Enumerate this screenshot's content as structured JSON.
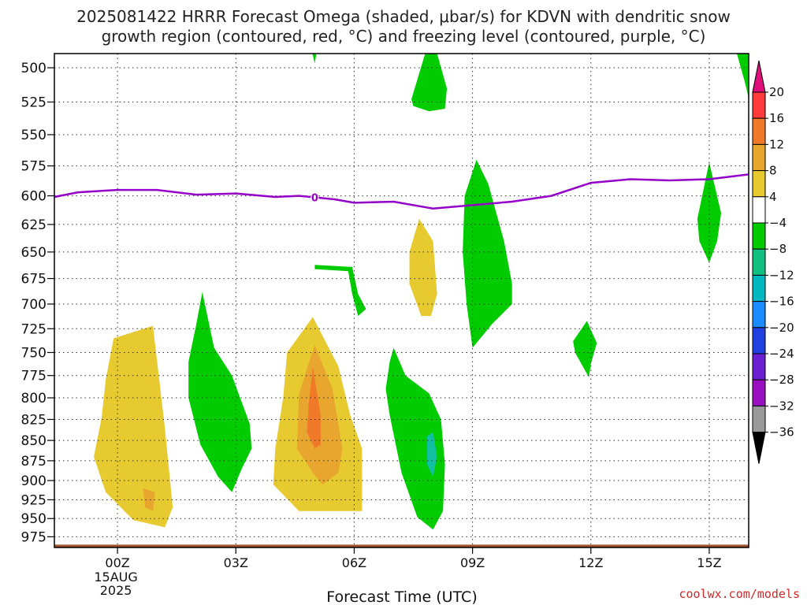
{
  "chart_data": {
    "type": "heatmap",
    "title_lines": [
      "2025081422 HRRR Forecast Omega (shaded, μbar/s) for KDVN with dendritic snow",
      "growth region (contoured, red, °C) and freezing level (contoured, purple, °C)"
    ],
    "xlabel": "Forecast Time (UTC)",
    "credit": "coolwx.com/models",
    "x_range_hours": [
      -1.6,
      16.0
    ],
    "y_range_mb": [
      490,
      990
    ],
    "y_scale": "log-pressure",
    "grid": true,
    "y_ticks": [
      500,
      525,
      550,
      575,
      600,
      625,
      650,
      675,
      700,
      725,
      750,
      775,
      800,
      825,
      850,
      875,
      900,
      925,
      950,
      975
    ],
    "x_ticks": [
      {
        "hour": 0,
        "label": "00Z",
        "sub": [
          "15AUG",
          "2025"
        ]
      },
      {
        "hour": 3,
        "label": "03Z",
        "sub": []
      },
      {
        "hour": 6,
        "label": "06Z",
        "sub": []
      },
      {
        "hour": 9,
        "label": "09Z",
        "sub": []
      },
      {
        "hour": 12,
        "label": "12Z",
        "sub": []
      },
      {
        "hour": 15,
        "label": "15Z",
        "sub": []
      }
    ],
    "colorbar": {
      "labels": [
        "20",
        "16",
        "12",
        "8",
        "4",
        "−4",
        "−8",
        "−12",
        "−16",
        "−20",
        "−24",
        "−28",
        "−32",
        "−36"
      ],
      "colors": [
        "#ff3b3b",
        "#f07a2a",
        "#e8a62e",
        "#e6ca30",
        "#ffffff",
        "#00cc00",
        "#10c080",
        "#00b8c0",
        "#1a8cff",
        "#2040e0",
        "#6a20d0",
        "#9a10c0",
        "#9a9a9a"
      ],
      "top_color": "#e0107a",
      "bottom_color": "#000000"
    },
    "freezing_level": {
      "value_label": "0",
      "label_hour": 5.0,
      "color": "#9400c8",
      "points": [
        [
          -1.6,
          601
        ],
        [
          -1,
          597
        ],
        [
          0,
          595
        ],
        [
          1,
          595
        ],
        [
          2,
          599
        ],
        [
          3,
          598
        ],
        [
          4,
          601
        ],
        [
          4.6,
          600
        ],
        [
          5.5,
          603
        ],
        [
          6,
          606
        ],
        [
          7,
          605
        ],
        [
          8,
          611
        ],
        [
          9,
          608
        ],
        [
          10,
          605
        ],
        [
          11,
          600
        ],
        [
          12,
          589
        ],
        [
          13,
          586
        ],
        [
          14,
          587
        ],
        [
          15,
          586
        ],
        [
          16,
          582
        ]
      ]
    },
    "terrain": {
      "color": "#a0522d",
      "top_mb": 986
    },
    "features": [
      {
        "name": "shade-4-8-a",
        "color": "#e6ca30",
        "points": [
          [
            -0.1,
            735
          ],
          [
            0.9,
            722
          ],
          [
            1.2,
            835
          ],
          [
            1.4,
            935
          ],
          [
            1.2,
            962
          ],
          [
            0.4,
            952
          ],
          [
            -0.3,
            915
          ],
          [
            -0.6,
            870
          ],
          [
            -0.4,
            822
          ],
          [
            -0.3,
            780
          ]
        ]
      },
      {
        "name": "shade-8-12-a",
        "color": "#e8a62e",
        "points": [
          [
            0.65,
            910
          ],
          [
            0.95,
            915
          ],
          [
            0.9,
            940
          ],
          [
            0.7,
            935
          ]
        ]
      },
      {
        "name": "shade-4-8-b",
        "color": "#e6ca30",
        "points": [
          [
            4.3,
            750
          ],
          [
            4.95,
            713
          ],
          [
            5.6,
            765
          ],
          [
            5.9,
            820
          ],
          [
            6.2,
            860
          ],
          [
            6.2,
            940
          ],
          [
            4.6,
            940
          ],
          [
            3.95,
            905
          ],
          [
            4.0,
            860
          ],
          [
            4.2,
            800
          ]
        ]
      },
      {
        "name": "shade-8-12-b",
        "color": "#e8a62e",
        "points": [
          [
            4.6,
            795
          ],
          [
            5.0,
            742
          ],
          [
            5.45,
            790
          ],
          [
            5.7,
            860
          ],
          [
            5.6,
            890
          ],
          [
            5.2,
            905
          ],
          [
            4.95,
            890
          ],
          [
            4.55,
            860
          ]
        ]
      },
      {
        "name": "shade-12-16-b",
        "color": "#f07a2a",
        "points": [
          [
            4.85,
            805
          ],
          [
            4.95,
            765
          ],
          [
            5.15,
            820
          ],
          [
            5.15,
            855
          ],
          [
            5.0,
            860
          ],
          [
            4.8,
            840
          ]
        ]
      },
      {
        "name": "shade-4-8-c",
        "color": "#e6ca30",
        "points": [
          [
            7.4,
            650
          ],
          [
            7.65,
            620
          ],
          [
            8.0,
            640
          ],
          [
            8.1,
            690
          ],
          [
            7.95,
            712
          ],
          [
            7.7,
            712
          ],
          [
            7.4,
            680
          ]
        ]
      },
      {
        "name": "shade-down-a",
        "color": "#00cc00",
        "points": [
          [
            2.0,
            720
          ],
          [
            2.15,
            688
          ],
          [
            2.45,
            745
          ],
          [
            2.9,
            775
          ],
          [
            3.35,
            830
          ],
          [
            3.4,
            860
          ],
          [
            3.15,
            885
          ],
          [
            2.9,
            915
          ],
          [
            2.55,
            895
          ],
          [
            2.1,
            855
          ],
          [
            1.8,
            800
          ],
          [
            1.8,
            760
          ]
        ]
      },
      {
        "name": "shade-down-b",
        "color": "#00cc00",
        "points": [
          [
            6.9,
            760
          ],
          [
            7.0,
            745
          ],
          [
            7.3,
            775
          ],
          [
            7.9,
            795
          ],
          [
            8.2,
            825
          ],
          [
            8.3,
            880
          ],
          [
            8.25,
            940
          ],
          [
            8.0,
            965
          ],
          [
            7.6,
            948
          ],
          [
            7.2,
            890
          ],
          [
            6.9,
            820
          ],
          [
            6.8,
            790
          ]
        ]
      },
      {
        "name": "shade-down-12-16-b",
        "color": "#10c0a0",
        "points": [
          [
            7.85,
            845
          ],
          [
            8.0,
            840
          ],
          [
            8.1,
            870
          ],
          [
            8.0,
            895
          ],
          [
            7.85,
            880
          ]
        ]
      },
      {
        "name": "shade-down-c",
        "color": "#00cc00",
        "points": [
          [
            8.8,
            600
          ],
          [
            9.1,
            570
          ],
          [
            9.4,
            590
          ],
          [
            9.8,
            640
          ],
          [
            10.0,
            680
          ],
          [
            10.0,
            700
          ],
          [
            9.5,
            720
          ],
          [
            9.0,
            745
          ],
          [
            8.85,
            700
          ],
          [
            8.75,
            650
          ]
        ]
      },
      {
        "name": "shade-down-d",
        "color": "#00cc00",
        "points": [
          [
            7.45,
            523
          ],
          [
            7.8,
            490
          ],
          [
            8.1,
            490
          ],
          [
            8.35,
            515
          ],
          [
            8.3,
            530
          ],
          [
            7.9,
            532
          ],
          [
            7.5,
            528
          ]
        ]
      },
      {
        "name": "shade-down-e",
        "color": "#00cc00",
        "points": [
          [
            5.0,
            662
          ],
          [
            5.95,
            664
          ],
          [
            6.1,
            690
          ],
          [
            6.3,
            705
          ],
          [
            6.1,
            712
          ],
          [
            5.95,
            690
          ],
          [
            5.85,
            668
          ],
          [
            5.0,
            666
          ]
        ]
      },
      {
        "name": "shade-down-f",
        "color": "#00cc00",
        "points": [
          [
            11.55,
            738
          ],
          [
            11.9,
            717
          ],
          [
            12.15,
            740
          ],
          [
            12.0,
            762
          ],
          [
            11.95,
            777
          ],
          [
            11.6,
            750
          ]
        ]
      },
      {
        "name": "shade-down-g",
        "color": "#00cc00",
        "points": [
          [
            14.7,
            620
          ],
          [
            15.0,
            572
          ],
          [
            15.3,
            615
          ],
          [
            15.2,
            640
          ],
          [
            15.0,
            660
          ],
          [
            14.75,
            640
          ]
        ]
      },
      {
        "name": "shade-down-h",
        "color": "#00cc00",
        "points": [
          [
            15.7,
            490
          ],
          [
            16.0,
            490
          ],
          [
            16.0,
            522
          ],
          [
            15.9,
            510
          ]
        ]
      },
      {
        "name": "shade-down-i",
        "color": "#00cc00",
        "points": [
          [
            4.94,
            490
          ],
          [
            5.04,
            490
          ],
          [
            5.0,
            497
          ]
        ]
      }
    ]
  }
}
